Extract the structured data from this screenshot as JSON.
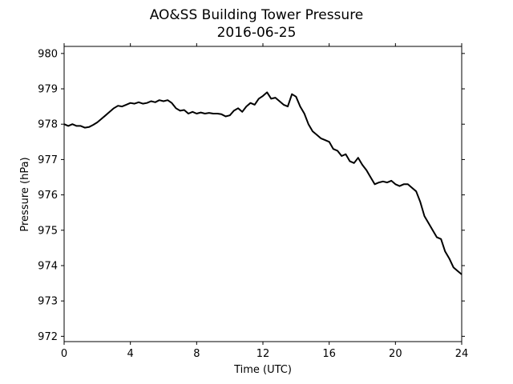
{
  "chart_data": {
    "type": "line",
    "title": "AO&SS Building Tower Pressure",
    "subtitle": "2016-06-25",
    "xlabel": "Time (UTC)",
    "ylabel": "Pressure (hPa)",
    "xlim": [
      0,
      24
    ],
    "ylim": [
      971.85,
      980.2
    ],
    "xticks": [
      0,
      4,
      8,
      12,
      16,
      20,
      24
    ],
    "yticks": [
      972,
      973,
      974,
      975,
      976,
      977,
      978,
      979,
      980
    ],
    "grid": false,
    "line_color": "#000000",
    "series": [
      {
        "x": [
          0,
          0.25,
          0.5,
          0.75,
          1.0,
          1.25,
          1.5,
          1.75,
          2.0,
          2.25,
          2.5,
          2.75,
          3.0,
          3.25,
          3.5,
          3.75,
          4.0,
          4.25,
          4.5,
          4.75,
          5.0,
          5.25,
          5.5,
          5.75,
          6.0,
          6.25,
          6.5,
          6.75,
          7.0,
          7.25,
          7.5,
          7.75,
          8.0,
          8.25,
          8.5,
          8.75,
          9.0,
          9.25,
          9.5,
          9.75,
          10.0,
          10.25,
          10.5,
          10.75,
          11.0,
          11.25,
          11.5,
          11.75,
          12.0,
          12.25,
          12.5,
          12.75,
          13.0,
          13.25,
          13.5,
          13.75,
          14.0,
          14.25,
          14.5,
          14.75,
          15.0,
          15.25,
          15.5,
          15.75,
          16.0,
          16.25,
          16.5,
          16.75,
          17.0,
          17.25,
          17.5,
          17.75,
          18.0,
          18.25,
          18.5,
          18.75,
          19.0,
          19.25,
          19.5,
          19.75,
          20.0,
          20.25,
          20.5,
          20.75,
          21.0,
          21.25,
          21.5,
          21.75,
          22.0,
          22.25,
          22.5,
          22.75,
          23.0,
          23.25,
          23.5,
          23.75,
          24.0
        ],
        "y": [
          978.0,
          977.95,
          978.0,
          977.95,
          977.95,
          977.9,
          977.92,
          977.98,
          978.05,
          978.15,
          978.25,
          978.35,
          978.45,
          978.52,
          978.5,
          978.55,
          978.6,
          978.58,
          978.62,
          978.58,
          978.6,
          978.65,
          978.62,
          978.68,
          978.65,
          978.68,
          978.6,
          978.45,
          978.38,
          978.4,
          978.3,
          978.35,
          978.3,
          978.33,
          978.3,
          978.32,
          978.3,
          978.3,
          978.28,
          978.22,
          978.25,
          978.38,
          978.45,
          978.35,
          978.5,
          978.6,
          978.55,
          978.72,
          978.8,
          978.9,
          978.72,
          978.75,
          978.65,
          978.55,
          978.5,
          978.85,
          978.78,
          978.5,
          978.3,
          978.0,
          977.8,
          977.7,
          977.6,
          977.55,
          977.5,
          977.3,
          977.25,
          977.1,
          977.15,
          976.95,
          976.9,
          977.05,
          976.85,
          976.7,
          976.5,
          976.3,
          976.35,
          976.38,
          976.35,
          976.4,
          976.3,
          976.25,
          976.3,
          976.3,
          976.2,
          976.1,
          975.8,
          975.4,
          975.2,
          975.0,
          974.8,
          974.75,
          974.4,
          974.2,
          973.95,
          973.85,
          973.75
        ]
      }
    ]
  }
}
